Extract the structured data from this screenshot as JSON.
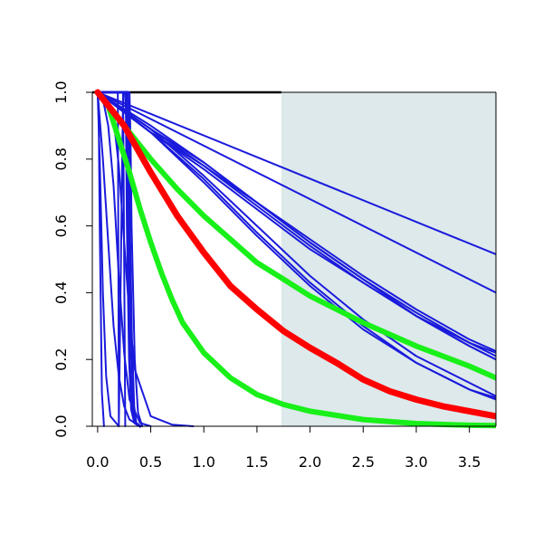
{
  "chart_data": {
    "type": "line",
    "title": "",
    "xlabel": "",
    "ylabel": "",
    "xlim": [
      -0.05,
      3.75
    ],
    "ylim": [
      0,
      1
    ],
    "x_ticks": [
      0.0,
      0.5,
      1.0,
      1.5,
      2.0,
      2.5,
      3.0,
      3.5
    ],
    "x_tick_labels": [
      "0.0",
      "0.5",
      "1.0",
      "1.5",
      "2.0",
      "2.5",
      "3.0",
      "3.5"
    ],
    "y_ticks": [
      0.0,
      0.2,
      0.4,
      0.6,
      0.8,
      1.0
    ],
    "y_tick_labels": [
      "0.0",
      "0.2",
      "0.4",
      "0.6",
      "0.8",
      "1.0"
    ],
    "grid": false,
    "legend": "none",
    "shaded_region": {
      "x_from": 1.73,
      "x_to": 3.75,
      "color": "#dde9ea"
    },
    "top_reference_line": {
      "y": 1.0,
      "x_from": -0.05,
      "x_to": 1.73,
      "color": "#000000"
    },
    "colors": {
      "blue": "#1a1adc",
      "red": "#ff0000",
      "green": "#19f019"
    },
    "series": [
      {
        "color": "blue",
        "width": 2,
        "x": [
          0,
          0.01,
          0.02,
          0.04,
          0.06
        ],
        "y": [
          1,
          0.95,
          0.6,
          0.1,
          0.0
        ]
      },
      {
        "color": "blue",
        "width": 2,
        "x": [
          0,
          0.02,
          0.05,
          0.08,
          0.12,
          0.2
        ],
        "y": [
          1,
          0.8,
          0.4,
          0.15,
          0.03,
          0.0
        ]
      },
      {
        "color": "blue",
        "width": 2,
        "x": [
          0,
          0.05,
          0.1,
          0.15,
          0.2,
          0.25,
          0.3,
          0.4
        ],
        "y": [
          1,
          0.8,
          0.55,
          0.3,
          0.15,
          0.06,
          0.02,
          0.0
        ]
      },
      {
        "color": "blue",
        "width": 2,
        "x": [
          0,
          0.05,
          0.1,
          0.15,
          0.2,
          0.25,
          0.3,
          0.4,
          0.5
        ],
        "y": [
          1,
          0.98,
          0.9,
          0.72,
          0.45,
          0.22,
          0.08,
          0.01,
          0.0
        ]
      },
      {
        "color": "blue",
        "width": 2,
        "x": [
          0,
          0.1,
          0.15,
          0.2,
          0.25,
          0.3,
          0.35,
          0.5,
          0.7,
          0.9
        ],
        "y": [
          1,
          0.98,
          0.92,
          0.78,
          0.55,
          0.33,
          0.17,
          0.03,
          0.005,
          0.0
        ]
      },
      {
        "color": "blue",
        "width": 2,
        "x": [
          0,
          0.1,
          0.19,
          0.195,
          0.2,
          0.24,
          0.25,
          0.26
        ],
        "y": [
          1,
          1,
          1,
          0.5,
          0.0,
          1.0,
          0.5,
          0.0
        ]
      },
      {
        "color": "blue",
        "width": 3,
        "x": [
          0,
          0.26,
          0.27,
          0.28,
          0.3,
          0.32,
          0.35,
          0.4
        ],
        "y": [
          1,
          1,
          0.95,
          0.6,
          0.2,
          0.05,
          0.01,
          0.0
        ]
      },
      {
        "color": "blue",
        "width": 3,
        "x": [
          0,
          0.28,
          0.29,
          0.3,
          0.32,
          0.34,
          0.36,
          0.4
        ],
        "y": [
          1,
          1,
          0.9,
          0.6,
          0.25,
          0.06,
          0.01,
          0.0
        ]
      },
      {
        "color": "blue",
        "width": 2,
        "x": [
          0,
          0.3,
          0.31,
          0.32,
          0.35,
          0.38,
          0.42
        ],
        "y": [
          1,
          1,
          0.85,
          0.6,
          0.2,
          0.04,
          0.0
        ]
      },
      {
        "color": "blue",
        "width": 2,
        "x": [
          0,
          3.75
        ],
        "y": [
          1,
          0.515
        ]
      },
      {
        "color": "blue",
        "width": 2,
        "x": [
          0,
          3.75
        ],
        "y": [
          1,
          0.4
        ]
      },
      {
        "color": "blue",
        "width": 2,
        "x": [
          0,
          0.5,
          1.0,
          1.5,
          2.0,
          2.5,
          3.0,
          3.5,
          3.75
        ],
        "y": [
          1,
          0.89,
          0.79,
          0.67,
          0.55,
          0.44,
          0.33,
          0.24,
          0.2
        ]
      },
      {
        "color": "blue",
        "width": 2,
        "x": [
          0,
          0.5,
          1.0,
          1.5,
          2.0,
          2.5,
          3.0,
          3.5,
          3.75
        ],
        "y": [
          1,
          0.88,
          0.78,
          0.66,
          0.54,
          0.43,
          0.33,
          0.25,
          0.21
        ]
      },
      {
        "color": "blue",
        "width": 2,
        "x": [
          0,
          0.5,
          1.0,
          1.5,
          2.0,
          2.5,
          3.0,
          3.5,
          3.75
        ],
        "y": [
          1,
          0.89,
          0.78,
          0.67,
          0.55,
          0.44,
          0.34,
          0.25,
          0.22
        ]
      },
      {
        "color": "blue",
        "width": 2,
        "x": [
          0,
          0.5,
          1.0,
          1.5,
          2.0,
          2.5,
          3.0,
          3.5,
          3.75
        ],
        "y": [
          1,
          0.9,
          0.79,
          0.67,
          0.56,
          0.45,
          0.35,
          0.26,
          0.225
        ]
      },
      {
        "color": "blue",
        "width": 2,
        "x": [
          0,
          0.5,
          1.0,
          1.5,
          2.0,
          2.5,
          3.0,
          3.5,
          3.75
        ],
        "y": [
          1,
          0.88,
          0.77,
          0.65,
          0.53,
          0.43,
          0.33,
          0.24,
          0.2
        ]
      },
      {
        "color": "blue",
        "width": 2,
        "x": [
          0,
          0.5,
          1.0,
          1.5,
          2.0,
          2.5,
          3.0,
          3.5,
          3.75
        ],
        "y": [
          1,
          0.89,
          0.75,
          0.6,
          0.45,
          0.32,
          0.21,
          0.13,
          0.09
        ]
      },
      {
        "color": "blue",
        "width": 2,
        "x": [
          0,
          0.5,
          1.0,
          1.5,
          2.0,
          2.5,
          3.0,
          3.5,
          3.75
        ],
        "y": [
          1,
          0.88,
          0.74,
          0.58,
          0.43,
          0.3,
          0.19,
          0.11,
          0.08
        ]
      },
      {
        "color": "blue",
        "width": 2,
        "x": [
          0,
          0.5,
          1.0,
          1.5,
          2.0,
          2.5,
          3.0,
          3.5,
          3.75
        ],
        "y": [
          1,
          0.88,
          0.73,
          0.57,
          0.42,
          0.29,
          0.19,
          0.11,
          0.085
        ]
      },
      {
        "color": "red",
        "width": 7,
        "x": [
          0,
          0.25,
          0.5,
          0.75,
          1.0,
          1.25,
          1.5,
          1.75,
          2.0,
          2.25,
          2.5,
          2.75,
          3.0,
          3.25,
          3.5,
          3.75
        ],
        "y": [
          1,
          0.9,
          0.76,
          0.63,
          0.52,
          0.42,
          0.35,
          0.285,
          0.235,
          0.19,
          0.14,
          0.105,
          0.08,
          0.06,
          0.045,
          0.03
        ]
      },
      {
        "color": "green",
        "width": 6,
        "x": [
          0,
          0.25,
          0.5,
          0.75,
          1.0,
          1.25,
          1.5,
          1.75,
          2.0,
          2.5,
          3.0,
          3.5,
          3.75
        ],
        "y": [
          1,
          0.9,
          0.8,
          0.71,
          0.63,
          0.56,
          0.49,
          0.44,
          0.39,
          0.31,
          0.24,
          0.18,
          0.145
        ]
      },
      {
        "color": "green",
        "width": 6,
        "x": [
          0,
          0.1,
          0.2,
          0.3,
          0.4,
          0.5,
          0.6,
          0.7,
          0.8,
          1.0,
          1.25,
          1.5,
          1.75,
          2.0,
          2.5,
          3.0,
          3.5,
          3.75
        ],
        "y": [
          1,
          0.96,
          0.86,
          0.76,
          0.65,
          0.55,
          0.46,
          0.38,
          0.31,
          0.22,
          0.145,
          0.095,
          0.065,
          0.045,
          0.02,
          0.008,
          0.003,
          0.002
        ]
      }
    ]
  }
}
